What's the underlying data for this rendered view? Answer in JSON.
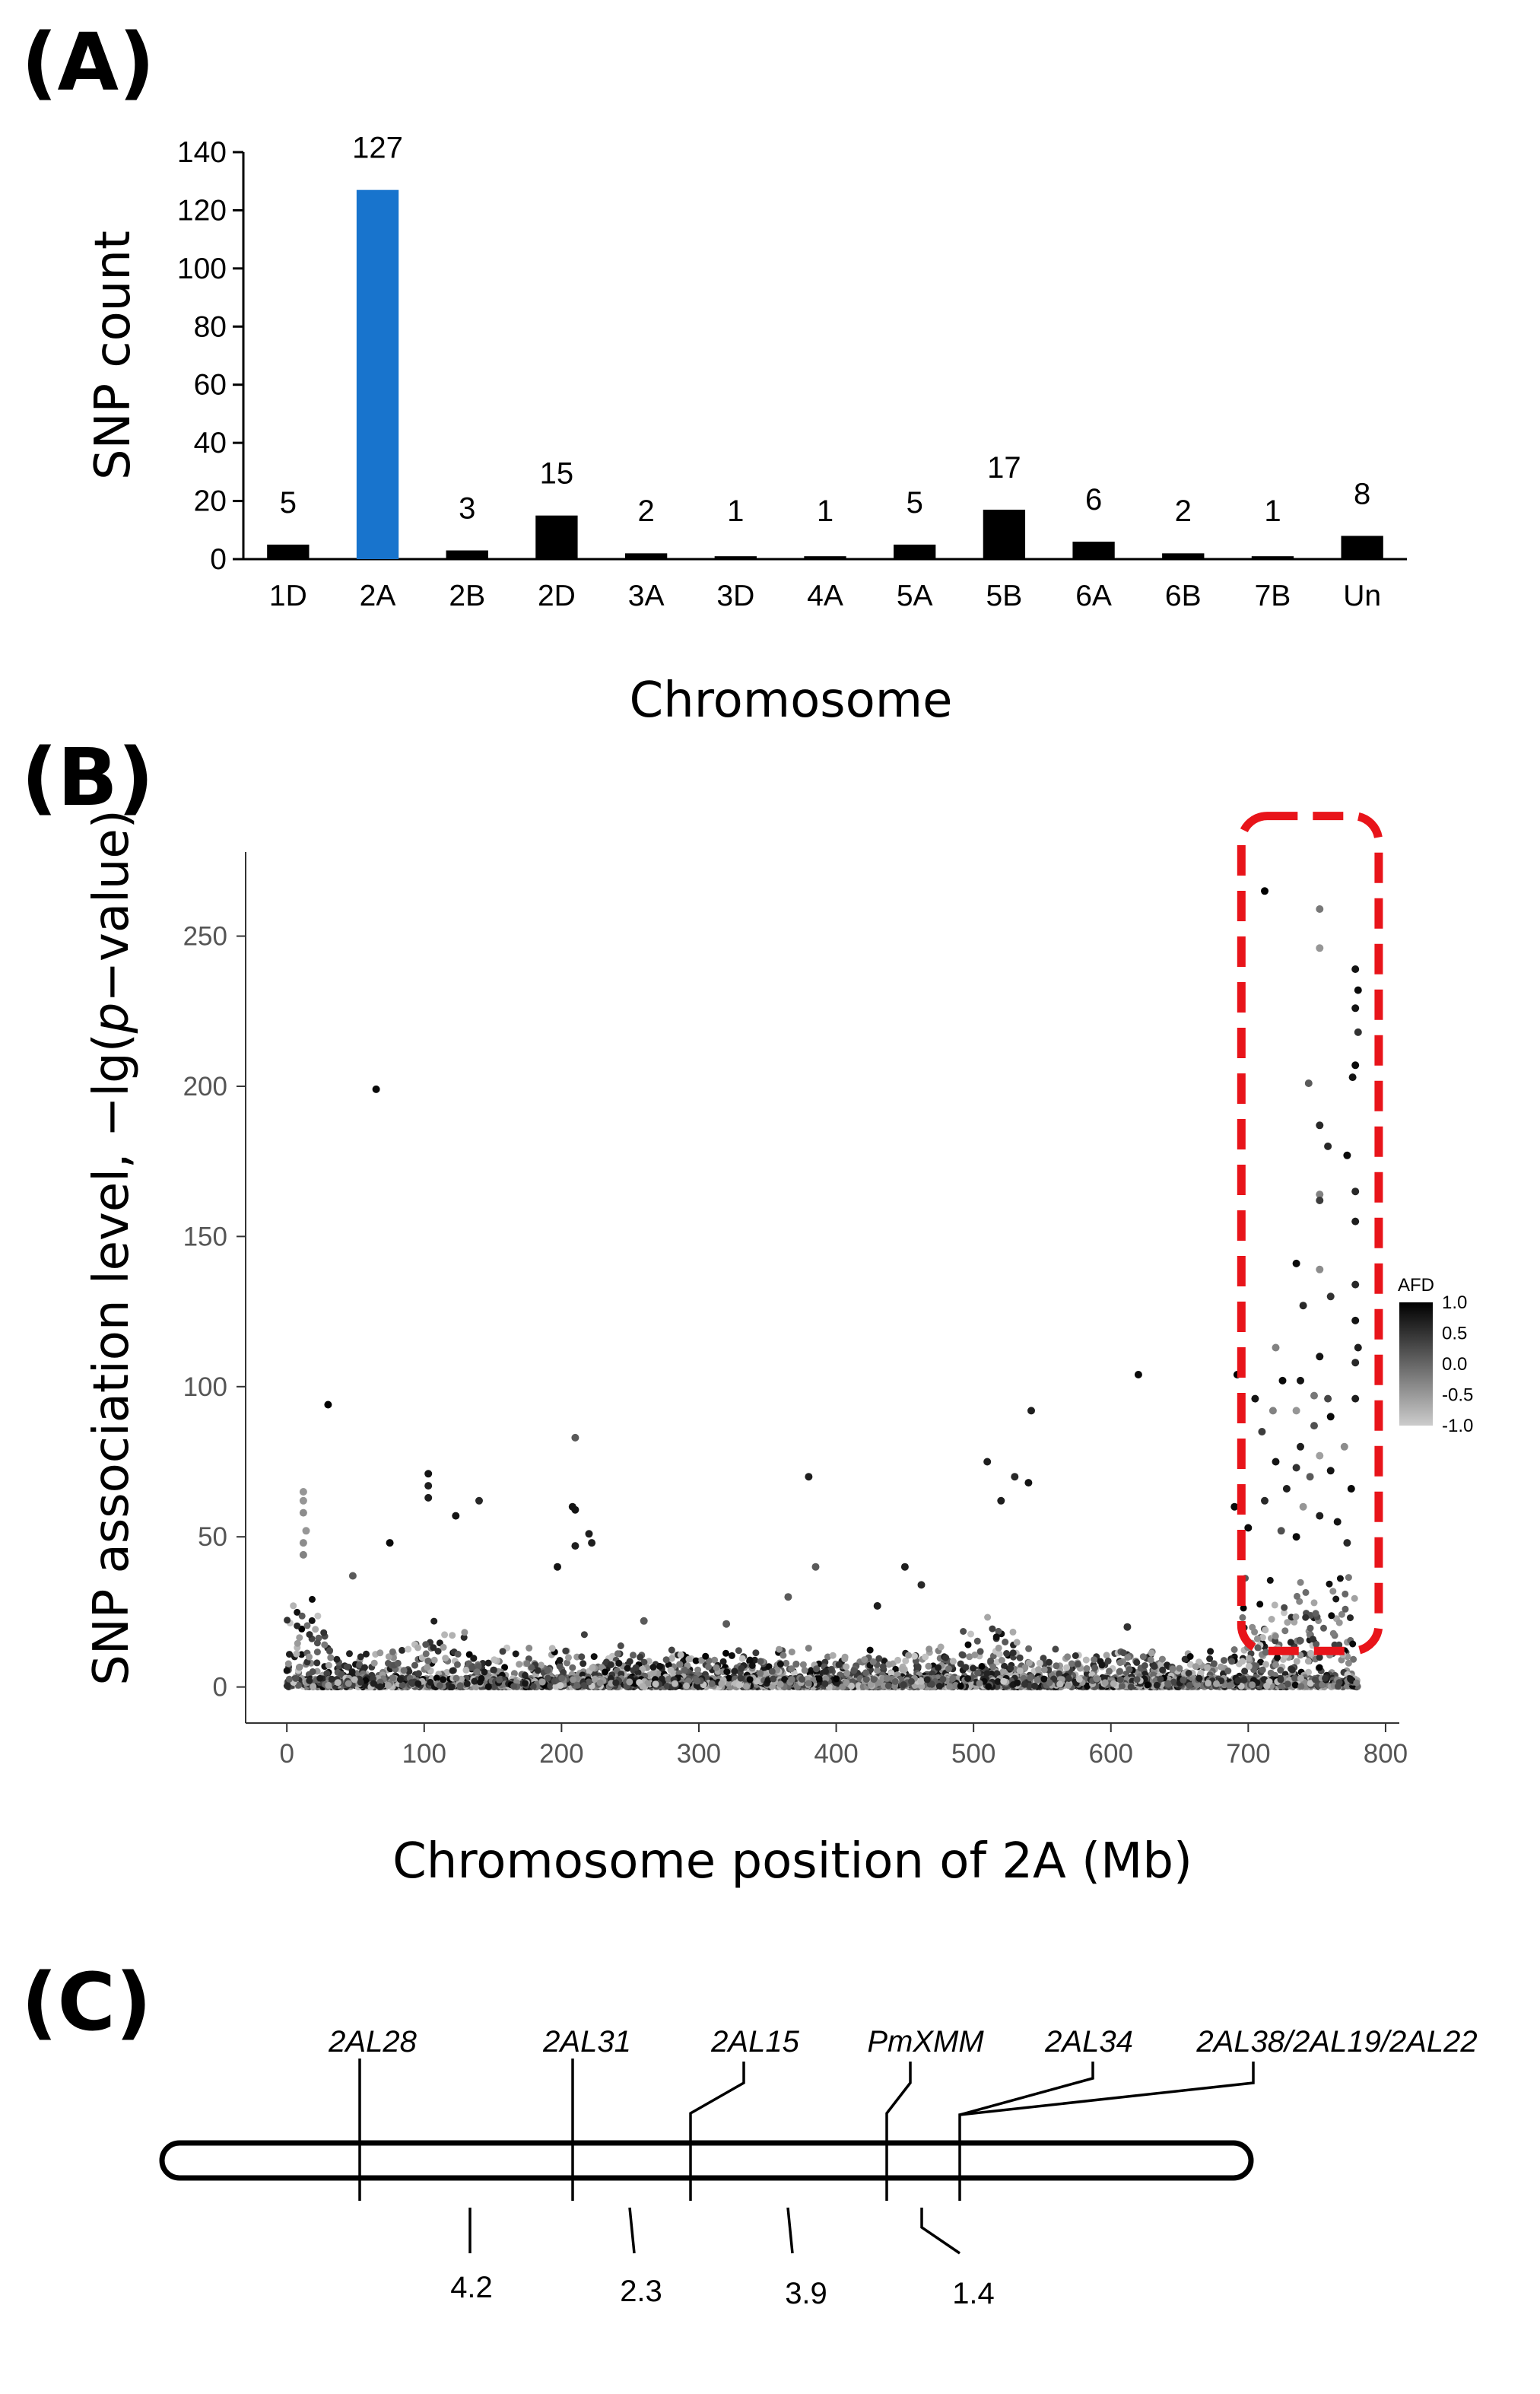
{
  "panels": {
    "a": "(A)",
    "b": "(B)",
    "c": "(C)"
  },
  "chart_data": [
    {
      "type": "bar",
      "title": "",
      "xlabel": "Chromosome",
      "ylabel": "SNP count",
      "ylim": [
        0,
        140
      ],
      "yticks": [
        0,
        20,
        40,
        60,
        80,
        100,
        120,
        140
      ],
      "grid": false,
      "categories": [
        "1D",
        "2A",
        "2B",
        "2D",
        "3A",
        "3D",
        "4A",
        "5A",
        "5B",
        "6A",
        "6B",
        "7B",
        "Un"
      ],
      "values": [
        5,
        127,
        3,
        15,
        2,
        1,
        1,
        5,
        17,
        6,
        2,
        1,
        8
      ],
      "data_labels": [
        "5",
        "127",
        "3",
        "15",
        "2",
        "1",
        "1",
        "5",
        "17",
        "6",
        "2",
        "1",
        "8"
      ],
      "colors": {
        "default": "#000000",
        "highlight": "#1874CD",
        "highlight_category": "2A"
      }
    },
    {
      "type": "scatter",
      "title": "",
      "xlabel": "Chromosome position of 2A (Mb)",
      "ylabel_parts": [
        "SNP association level,  −lg(",
        "p",
        "−value)"
      ],
      "xlim": [
        -30,
        810
      ],
      "ylim": [
        -12,
        278
      ],
      "xticks": [
        0,
        100,
        200,
        300,
        400,
        500,
        600,
        700,
        800
      ],
      "yticks": [
        0,
        50,
        100,
        150,
        200,
        250
      ],
      "grid": false,
      "color_legend": {
        "title": "AFD",
        "ticks": [
          "1.0",
          "0.5",
          "0.0",
          "-0.5",
          "-1.0"
        ],
        "range": [
          -1,
          1
        ],
        "low_color": "#c8c8c8",
        "high_color": "#000000",
        "placement": "right"
      },
      "highlight_region": {
        "x": [
          695,
          795
        ],
        "y": [
          12,
          290
        ],
        "color": "#e8141a"
      },
      "points": [
        {
          "x": 65,
          "y": 199,
          "afd": 0.9
        },
        {
          "x": 30,
          "y": 94,
          "afd": 1.0
        },
        {
          "x": 210,
          "y": 83,
          "afd": 0.1
        },
        {
          "x": 380,
          "y": 70,
          "afd": 0.7
        },
        {
          "x": 510,
          "y": 75,
          "afd": 0.7
        },
        {
          "x": 520,
          "y": 62,
          "afd": 0.7
        },
        {
          "x": 530,
          "y": 70,
          "afd": 0.6
        },
        {
          "x": 542,
          "y": 92,
          "afd": 0.7
        },
        {
          "x": 540,
          "y": 68,
          "afd": 0.8
        },
        {
          "x": 620,
          "y": 104,
          "afd": 0.9
        },
        {
          "x": 140,
          "y": 62,
          "afd": 0.6
        },
        {
          "x": 75,
          "y": 48,
          "afd": 0.9
        },
        {
          "x": 103,
          "y": 71,
          "afd": 0.8
        },
        {
          "x": 103,
          "y": 67,
          "afd": 0.7
        },
        {
          "x": 103,
          "y": 63,
          "afd": 0.7
        },
        {
          "x": 123,
          "y": 57,
          "afd": 0.8
        },
        {
          "x": 12,
          "y": 65,
          "afd": -0.5
        },
        {
          "x": 12,
          "y": 62,
          "afd": -0.5
        },
        {
          "x": 12,
          "y": 58,
          "afd": -0.4
        },
        {
          "x": 14,
          "y": 52,
          "afd": -0.5
        },
        {
          "x": 12,
          "y": 48,
          "afd": -0.4
        },
        {
          "x": 12,
          "y": 44,
          "afd": -0.3
        },
        {
          "x": 208,
          "y": 60,
          "afd": 0.8
        },
        {
          "x": 210,
          "y": 59,
          "afd": 0.8
        },
        {
          "x": 220,
          "y": 51,
          "afd": 0.7
        },
        {
          "x": 222,
          "y": 48,
          "afd": 0.7
        },
        {
          "x": 197,
          "y": 40,
          "afd": 0.8
        },
        {
          "x": 210,
          "y": 47,
          "afd": 0.7
        },
        {
          "x": 450,
          "y": 40,
          "afd": 0.7
        },
        {
          "x": 462,
          "y": 34,
          "afd": 0.6
        },
        {
          "x": 365,
          "y": 30,
          "afd": 0.1
        },
        {
          "x": 385,
          "y": 40,
          "afd": 0.1
        },
        {
          "x": 48,
          "y": 37,
          "afd": 0.1
        },
        {
          "x": 430,
          "y": 27,
          "afd": 0.7
        },
        {
          "x": 612,
          "y": 20,
          "afd": 0.5
        },
        {
          "x": 260,
          "y": 22,
          "afd": 0.1
        },
        {
          "x": 320,
          "y": 21,
          "afd": 0.1
        },
        {
          "x": 690,
          "y": 60,
          "afd": 0.9
        },
        {
          "x": 692,
          "y": 104,
          "afd": 1.0
        },
        {
          "x": 712,
          "y": 265,
          "afd": 1.0
        },
        {
          "x": 752,
          "y": 259,
          "afd": -0.2
        },
        {
          "x": 752,
          "y": 246,
          "afd": -0.5
        },
        {
          "x": 778,
          "y": 239,
          "afd": 0.8
        },
        {
          "x": 780,
          "y": 232,
          "afd": 0.9
        },
        {
          "x": 778,
          "y": 226,
          "afd": 0.8
        },
        {
          "x": 780,
          "y": 218,
          "afd": 0.5
        },
        {
          "x": 778,
          "y": 207,
          "afd": 0.9
        },
        {
          "x": 776,
          "y": 203,
          "afd": 0.8
        },
        {
          "x": 744,
          "y": 201,
          "afd": 0.1
        },
        {
          "x": 752,
          "y": 187,
          "afd": 0.6
        },
        {
          "x": 758,
          "y": 180,
          "afd": 0.6
        },
        {
          "x": 772,
          "y": 177,
          "afd": 0.9
        },
        {
          "x": 778,
          "y": 165,
          "afd": 0.6
        },
        {
          "x": 752,
          "y": 164,
          "afd": -0.3
        },
        {
          "x": 752,
          "y": 162,
          "afd": 0.4
        },
        {
          "x": 778,
          "y": 155,
          "afd": 0.7
        },
        {
          "x": 735,
          "y": 141,
          "afd": 0.9
        },
        {
          "x": 752,
          "y": 139,
          "afd": -0.4
        },
        {
          "x": 778,
          "y": 134,
          "afd": 0.6
        },
        {
          "x": 760,
          "y": 130,
          "afd": 0.5
        },
        {
          "x": 740,
          "y": 127,
          "afd": 0.6
        },
        {
          "x": 778,
          "y": 122,
          "afd": 0.8
        },
        {
          "x": 780,
          "y": 113,
          "afd": 0.7
        },
        {
          "x": 720,
          "y": 113,
          "afd": -0.3
        },
        {
          "x": 752,
          "y": 110,
          "afd": 0.8
        },
        {
          "x": 778,
          "y": 108,
          "afd": 0.6
        },
        {
          "x": 725,
          "y": 102,
          "afd": 0.9
        },
        {
          "x": 738,
          "y": 102,
          "afd": 0.8
        },
        {
          "x": 705,
          "y": 96,
          "afd": 0.8
        },
        {
          "x": 748,
          "y": 97,
          "afd": -0.2
        },
        {
          "x": 758,
          "y": 96,
          "afd": 0.3
        },
        {
          "x": 778,
          "y": 96,
          "afd": 0.7
        },
        {
          "x": 718,
          "y": 92,
          "afd": -0.3
        },
        {
          "x": 735,
          "y": 92,
          "afd": -0.5
        },
        {
          "x": 760,
          "y": 90,
          "afd": 0.9
        },
        {
          "x": 748,
          "y": 87,
          "afd": 0.2
        },
        {
          "x": 710,
          "y": 85,
          "afd": 0.4
        },
        {
          "x": 738,
          "y": 80,
          "afd": 0.7
        },
        {
          "x": 770,
          "y": 80,
          "afd": -0.4
        },
        {
          "x": 752,
          "y": 77,
          "afd": -0.6
        },
        {
          "x": 720,
          "y": 75,
          "afd": 0.8
        },
        {
          "x": 735,
          "y": 73,
          "afd": 0.5
        },
        {
          "x": 760,
          "y": 72,
          "afd": 0.8
        },
        {
          "x": 745,
          "y": 70,
          "afd": 0.1
        },
        {
          "x": 728,
          "y": 66,
          "afd": 0.7
        },
        {
          "x": 775,
          "y": 66,
          "afd": 0.9
        },
        {
          "x": 712,
          "y": 62,
          "afd": 0.6
        },
        {
          "x": 740,
          "y": 60,
          "afd": -0.5
        },
        {
          "x": 752,
          "y": 57,
          "afd": 0.7
        },
        {
          "x": 765,
          "y": 55,
          "afd": 0.8
        },
        {
          "x": 700,
          "y": 53,
          "afd": 0.9
        },
        {
          "x": 724,
          "y": 52,
          "afd": 0.2
        },
        {
          "x": 735,
          "y": 50,
          "afd": 0.9
        },
        {
          "x": 772,
          "y": 48,
          "afd": 0.6
        }
      ]
    }
  ],
  "map": {
    "markers": [
      "2AL28",
      "2AL31",
      "2AL15",
      "PmXMM",
      "2AL34",
      "2AL38/2AL19/2AL22"
    ],
    "distances_cm": [
      "4.2",
      "2.3",
      "3.9",
      "1.4"
    ]
  }
}
